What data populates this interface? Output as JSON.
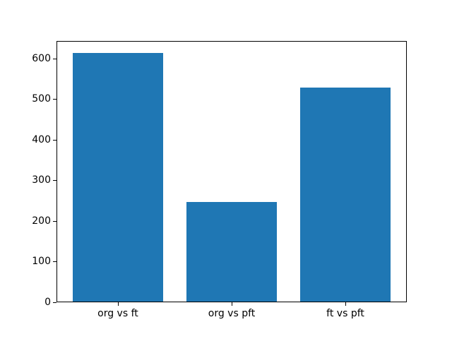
{
  "chart_data": {
    "type": "bar",
    "categories": [
      "org vs ft",
      "org vs pft",
      "ft vs pft"
    ],
    "values": [
      613,
      247,
      529
    ],
    "title": "",
    "xlabel": "",
    "ylabel": "",
    "ylim": [
      0,
      644
    ],
    "yticks": [
      0,
      100,
      200,
      300,
      400,
      500,
      600
    ],
    "bar_color": "#1f77b4",
    "bar_width_fraction": 0.8,
    "x_margin_fraction": 0.05,
    "grid": false,
    "legend_position": "none",
    "axes_color": "#000000",
    "background_color": "#ffffff"
  }
}
